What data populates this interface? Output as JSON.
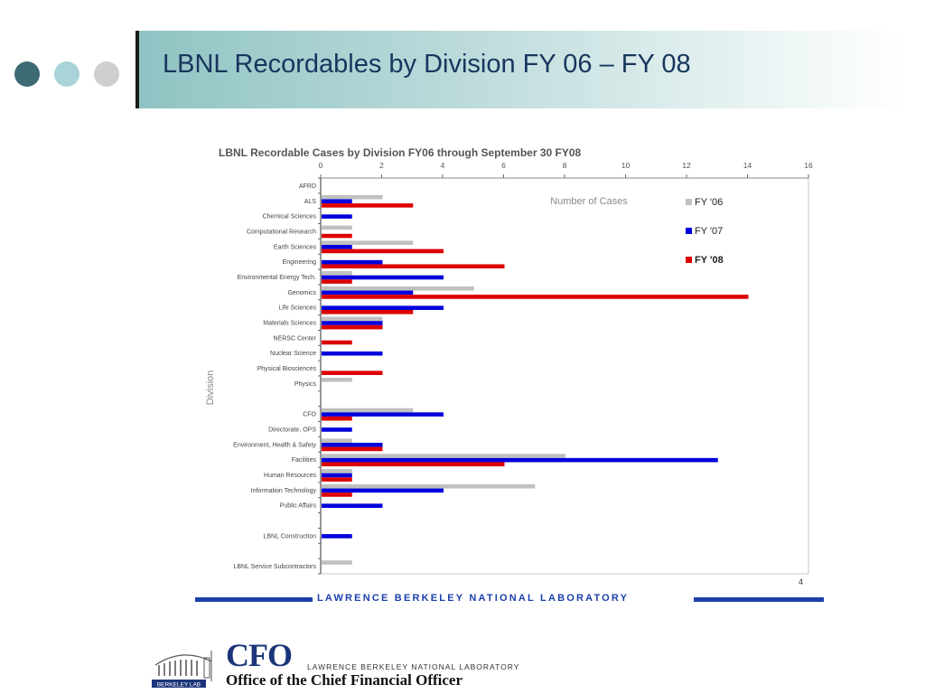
{
  "slide": {
    "title": "LBNL Recordables by Division FY 06 – FY 08",
    "page_number": "4",
    "footer_text": "LAWRENCE BERKELEY NATIONAL LABORATORY",
    "cfo_title": "CFO",
    "cfo_lab": "LAWRENCE BERKELEY NATIONAL LABORATORY",
    "cfo_office": "Office of the Chief Financial Officer",
    "logo_label": "BERKELEY LAB",
    "dot_colors": [
      "#3d6b73",
      "#a8d3d8",
      "#cfcfcf"
    ]
  },
  "chart_data": {
    "type": "bar",
    "orientation": "horizontal",
    "title": "LBNL Recordable Cases by Division FY06 through September 30 FY08",
    "xlabel": "Number of Cases",
    "ylabel": "Division",
    "xlim": [
      0,
      16
    ],
    "xticks": [
      "0",
      "2",
      "4",
      "6",
      "8",
      "10",
      "12",
      "14",
      "16"
    ],
    "x_axis_position": "top",
    "legend_position": "top-right",
    "grid": false,
    "categories": [
      "AFRD",
      "ALS",
      "Chemical Sciences",
      "Computational Research",
      "Earth Sciences",
      "Engineering",
      "Environmental Energy Tech.",
      "Genomics",
      "Life Sciences",
      "Materials Sciences",
      "NERSC Center",
      "Nuclear Science",
      "Physical Biosciences",
      "Physics",
      "",
      "CFO",
      "Directorate, OPS",
      "Environment, Health & Safety",
      "Facilities",
      "Human Resources",
      "Information Technology",
      "Public Affairs",
      "",
      "LBNL Construction",
      "",
      "LBNL Service Subcontractors"
    ],
    "series": [
      {
        "name": "FY '06",
        "color": "#c0c0c0",
        "values": [
          0,
          2,
          0,
          1,
          3,
          0,
          1,
          5,
          0,
          2,
          0,
          0,
          0,
          1,
          0,
          3,
          0,
          1,
          8,
          1,
          7,
          0,
          0,
          0,
          0,
          1
        ]
      },
      {
        "name": "FY '07",
        "color": "#0000dd",
        "values": [
          0,
          1,
          1,
          0,
          1,
          2,
          4,
          3,
          4,
          2,
          0,
          2,
          0,
          0,
          0,
          4,
          1,
          2,
          13,
          1,
          4,
          2,
          0,
          1,
          0,
          0
        ]
      },
      {
        "name": "FY '08",
        "color": "#dd0000",
        "values": [
          0,
          3,
          0,
          1,
          4,
          6,
          1,
          14,
          3,
          2,
          1,
          0,
          2,
          0,
          0,
          1,
          0,
          2,
          6,
          1,
          1,
          0,
          0,
          0,
          0,
          0
        ]
      }
    ]
  }
}
